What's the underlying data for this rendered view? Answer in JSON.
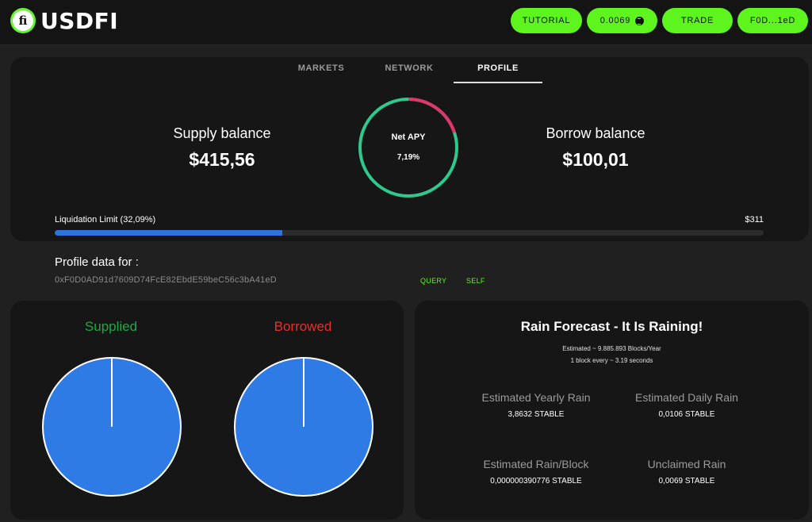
{
  "header": {
    "logo_letter": "fi",
    "logo_text": "USDFI",
    "buttons": {
      "tutorial": "TUTORIAL",
      "price": "0.0069",
      "trade": "TRADE",
      "wallet": "F0D...1eD"
    },
    "accent_color": "#5ef51f"
  },
  "tabs": [
    "MARKETS",
    "NETWORK",
    "PROFILE"
  ],
  "active_tab": "PROFILE",
  "summary": {
    "supply_label": "Supply balance",
    "supply_value": "$415,56",
    "borrow_label": "Borrow balance",
    "borrow_value": "$100,01",
    "apy_label": "Net APY",
    "apy_value": "7,19%",
    "apy_ring_fraction": 0.2,
    "liquidation_label": "Liquidation Limit (32,09%)",
    "liquidation_max": "$311",
    "liquidation_fraction": 0.3209
  },
  "profile": {
    "title": "Profile data for :",
    "address": "0xF0D0AD91d7609D74FcE82EbdE59beC56c3bA41eD",
    "query_label": "QUERY",
    "self_label": "SELF"
  },
  "pies": {
    "supplied_title": "Supplied",
    "borrowed_title": "Borrowed",
    "supplied_color": "#1fa84a",
    "borrowed_color": "#e0332f",
    "slice_color": "#2f7be6"
  },
  "rain": {
    "title": "Rain Forecast - It Is Raining!",
    "estimate_line": "Estimated ~ 9.885.893 Blocks/Year",
    "block_line": "1 block every ~ 3.19 seconds",
    "stats": [
      {
        "label": "Estimated Yearly Rain",
        "value": "3,8632 STABLE"
      },
      {
        "label": "Estimated Daily Rain",
        "value": "0,0106 STABLE"
      },
      {
        "label": "Estimated Rain/Block",
        "value": "0,000000390776 STABLE"
      },
      {
        "label": "Unclaimed Rain",
        "value": "0,0069 STABLE"
      }
    ]
  }
}
